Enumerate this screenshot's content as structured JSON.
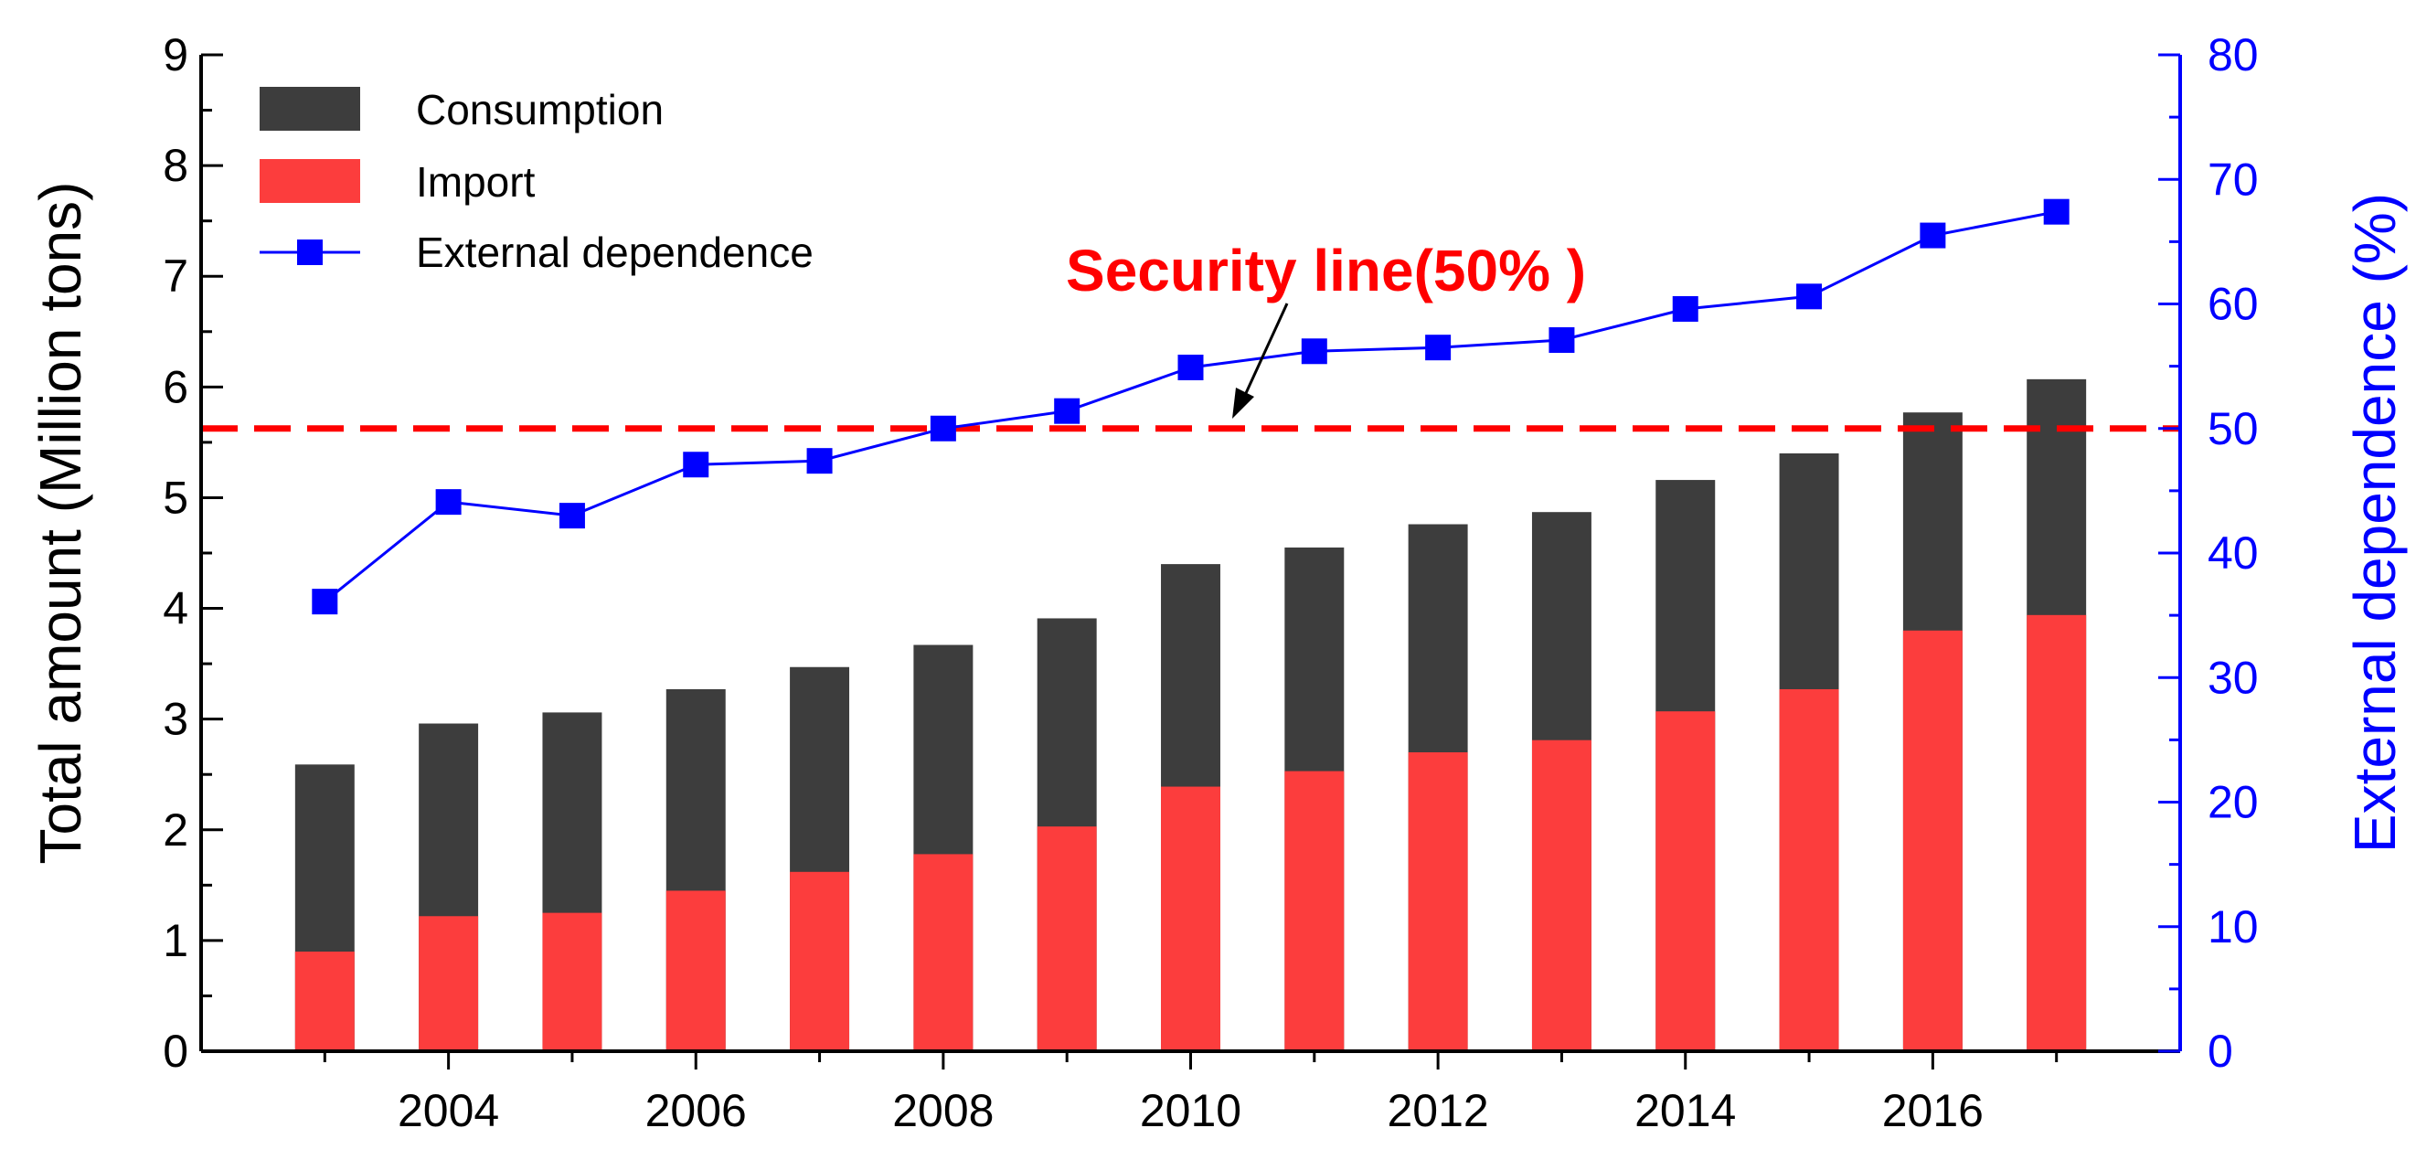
{
  "chart_data": {
    "type": "bar",
    "categories": [
      2003,
      2004,
      2005,
      2006,
      2007,
      2008,
      2009,
      2010,
      2011,
      2012,
      2013,
      2014,
      2015,
      2016,
      2017
    ],
    "series": [
      {
        "name": "Consumption",
        "kind": "bar",
        "axis": "left",
        "color": "#3d3d3d",
        "values": [
          2.59,
          2.96,
          3.06,
          3.27,
          3.47,
          3.67,
          3.91,
          4.4,
          4.55,
          4.76,
          4.87,
          5.16,
          5.4,
          5.77,
          6.07
        ]
      },
      {
        "name": "Import",
        "kind": "bar",
        "axis": "left",
        "color": "#fc3d3d",
        "values": [
          0.9,
          1.22,
          1.25,
          1.45,
          1.62,
          1.78,
          2.03,
          2.39,
          2.53,
          2.7,
          2.81,
          3.07,
          3.27,
          3.8,
          3.94
        ]
      },
      {
        "name": "External dependence",
        "kind": "line",
        "axis": "right",
        "color": "#0000ff",
        "values": [
          36.1,
          44.1,
          43.0,
          47.1,
          47.4,
          50.0,
          51.4,
          54.9,
          56.2,
          56.5,
          57.1,
          59.6,
          60.6,
          65.5,
          67.4
        ]
      }
    ],
    "xticks": [
      2004,
      2006,
      2008,
      2010,
      2012,
      2014,
      2016
    ],
    "xlim": [
      2002,
      2018
    ],
    "left_axis": {
      "label": "Total amount (Million tons)",
      "ylim": [
        0,
        9
      ],
      "ticks": [
        0,
        1,
        2,
        3,
        4,
        5,
        6,
        7,
        8,
        9
      ],
      "color": "#000000"
    },
    "right_axis": {
      "label": "External dependence (%)",
      "ylim": [
        0,
        80
      ],
      "ticks": [
        0,
        10,
        20,
        30,
        40,
        50,
        60,
        70,
        80
      ],
      "color": "#0000ff"
    },
    "reference_line": {
      "value": 50,
      "axis": "right",
      "color": "#ff0000",
      "label": "Security line(50% )"
    },
    "legend": {
      "position": "top-left",
      "entries": [
        "Consumption",
        "Import",
        "External dependence"
      ]
    }
  }
}
